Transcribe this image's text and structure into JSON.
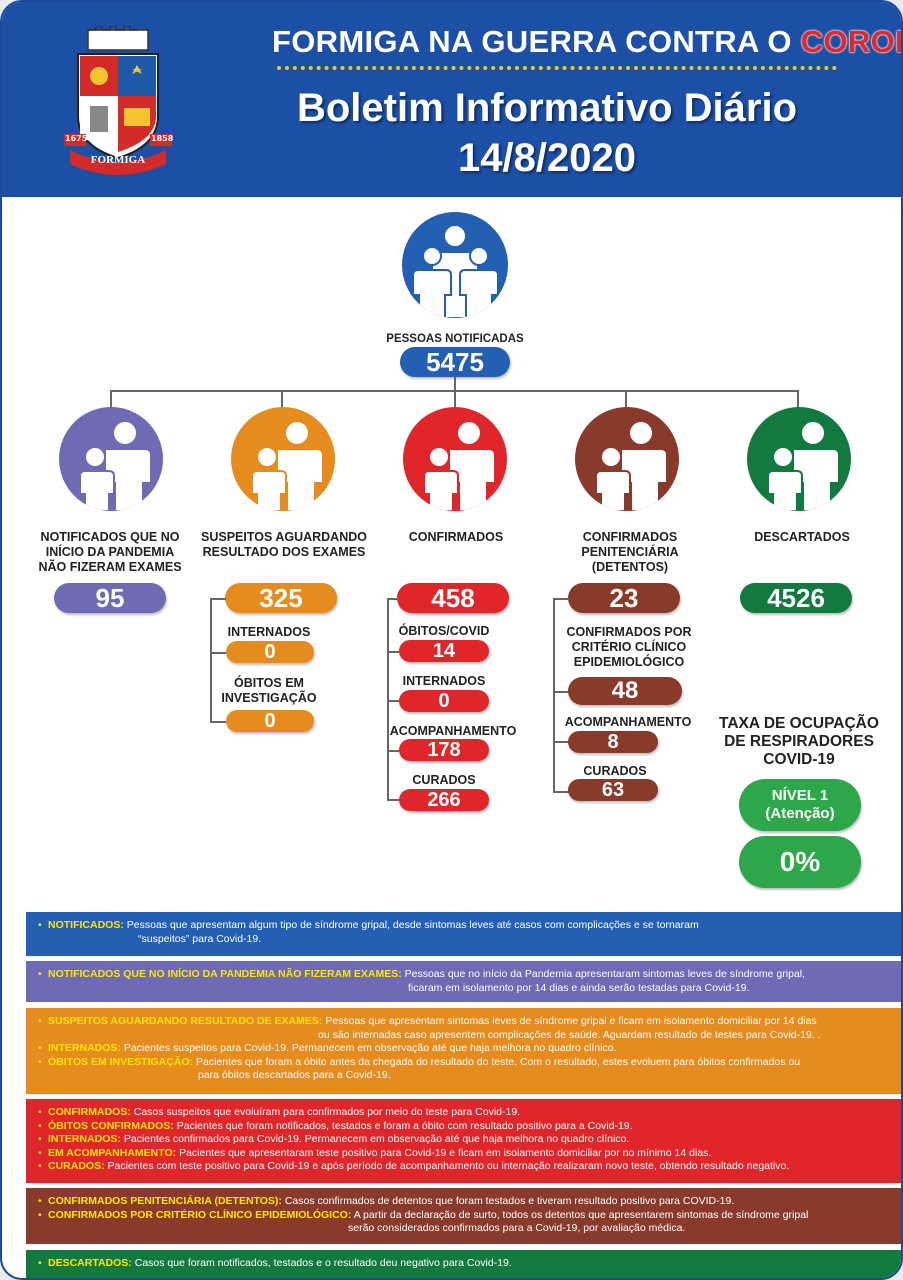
{
  "header": {
    "campaign_prefix": "FORMIGA NA GUERRA CONTRA O",
    "campaign_highlight": "CORONAVÍRUS",
    "title": "Boletim Informativo Diário",
    "date": "14/8/2020",
    "crest": {
      "year_left": "1675",
      "year_right": "1858",
      "banner": "FORMIGA"
    }
  },
  "notified": {
    "label": "PESSOAS NOTIFICADAS",
    "value": "5475"
  },
  "groups": [
    {
      "id": "no-exams",
      "label_lines": [
        "NOTIFICADOS QUE NO",
        "INÍCIO DA PANDEMIA",
        "NÃO FIZERAM EXAMES"
      ],
      "value": "95",
      "color": "#6e6ab4"
    },
    {
      "id": "suspects",
      "label_lines": [
        "SUSPEITOS AGUARDANDO",
        "RESULTADO DOS EXAMES"
      ],
      "value": "325",
      "color": "#e68b1d",
      "sub": [
        {
          "label_lines": [
            "INTERNADOS"
          ],
          "value": "0"
        },
        {
          "label_lines": [
            "ÓBITOS EM",
            "INVESTIGAÇÃO"
          ],
          "value": "0"
        }
      ]
    },
    {
      "id": "confirmed",
      "label_lines": [
        "CONFIRMADOS"
      ],
      "value": "458",
      "color": "#e0262a",
      "sub": [
        {
          "label_lines": [
            "ÓBITOS/COVID"
          ],
          "value": "14"
        },
        {
          "label_lines": [
            "INTERNADOS"
          ],
          "value": "0"
        },
        {
          "label_lines": [
            "ACOMPANHAMENTO"
          ],
          "value": "178"
        },
        {
          "label_lines": [
            "CURADOS"
          ],
          "value": "266"
        }
      ]
    },
    {
      "id": "prison",
      "label_lines": [
        "CONFIRMADOS",
        "PENITENCIÁRIA (DETENTOS)"
      ],
      "value": "23",
      "color": "#8a3a2a",
      "sub": [
        {
          "label_lines": [
            "CONFIRMADOS POR",
            "CRITÉRIO CLÍNICO",
            "EPIDEMIOLÓGICO"
          ],
          "value": "48"
        },
        {
          "label_lines": [
            "ACOMPANHAMENTO"
          ],
          "value": "8"
        },
        {
          "label_lines": [
            "CURADOS"
          ],
          "value": "63"
        }
      ]
    },
    {
      "id": "discarded",
      "label_lines": [
        "DESCARTADOS"
      ],
      "value": "4526",
      "color": "#137a3f"
    }
  ],
  "respirators": {
    "title_lines": [
      "TAXA DE OCUPAÇÃO",
      "DE RESPIRADORES",
      "COVID-19"
    ],
    "level_lines": [
      "NÍVEL 1",
      "(Atenção)"
    ],
    "rate": "0%"
  },
  "legend": {
    "blue": [
      {
        "key": "NOTIFICADOS:",
        "text": "Pessoas que apresentam algum tipo de síndrome gripal, desde sintomas leves até casos com complicações e se tornaram",
        "cont": "“suspeitos” para Covid-19."
      }
    ],
    "purple": [
      {
        "key": "NOTIFICADOS QUE NO INÍCIO DA PANDEMIA NÃO FIZERAM EXAMES:",
        "text": "Pessoas que no início da Pandemia apresentaram sintomas leves de síndrome gripal,",
        "cont": "ficaram em isolamento por 14 dias e ainda serão testadas para Covid-19."
      }
    ],
    "orange": [
      {
        "key": "SUSPEITOS AGUARDANDO RESULTADO DE EXAMES:",
        "text": "Pessoas que apresentam sintomas leves de síndrome gripal e ficam em isolamento domiciliar por 14 dias",
        "cont": "ou são internadas caso apresentem complicações de saúde. Aguardam resultado de testes para Covid-19. ."
      },
      {
        "key": "INTERNADOS:",
        "text": "Pacientes suspeitos para Covid-19. Permanecem em observação até que haja melhora no quadro clínico.",
        "cont": ""
      },
      {
        "key": "ÓBITOS EM INVESTIGAÇÃO:",
        "text": "Pacientes que foram a óbito antes da chegada do resultado do teste. Com o resultado, estes evoluem para óbitos confirmados ou",
        "cont": "para óbitos descartados para a Covid-19."
      }
    ],
    "red": [
      {
        "key": "CONFIRMADOS:",
        "text": "Casos suspeitos que evoluíram para confirmados por meio do teste para Covid-19.",
        "cont": ""
      },
      {
        "key": "ÓBITOS CONFIRMADOS:",
        "text": "Pacientes que foram notificados, testados e foram a óbito com resultado positivo para a Covid-19.",
        "cont": ""
      },
      {
        "key": "INTERNADOS:",
        "text": "Pacientes confirmados para Covid-19. Permanecem em observação até que haja melhora no quadro clínico.",
        "cont": ""
      },
      {
        "key": "EM ACOMPANHAMENTO:",
        "text": "Pacientes que apresentaram teste positivo para Covid-19 e ficam em isolamento domiciliar por no mínimo 14 dias.",
        "cont": ""
      },
      {
        "key": "CURADOS:",
        "text": "Pacientes com teste positivo para Covid-19 e após período de acompanhamento ou internação realizaram novo teste, obtendo resultado negativo.",
        "cont": ""
      }
    ],
    "brown": [
      {
        "key": "CONFIRMADOS PENITENCIÁRIA (DETENTOS):",
        "text": "Casos confirmados de detentos que foram testados e tiveram resultado positivo para COVID-19.",
        "cont": ""
      },
      {
        "key": "CONFIRMADOS POR CRITÉRIO CLÍNICO EPIDEMIOLÓGICO:",
        "text": "A partir da declaração de surto, todos os detentos que apresentarem sintomas de síndrome gripal",
        "cont": "serão considerados confirmados para a Covid-19, por avaliação médica."
      }
    ],
    "green": [
      {
        "key": "DESCARTADOS:",
        "text": "Casos que foram notificados, testados e o resultado deu negativo para Covid-19.",
        "cont": ""
      }
    ]
  }
}
